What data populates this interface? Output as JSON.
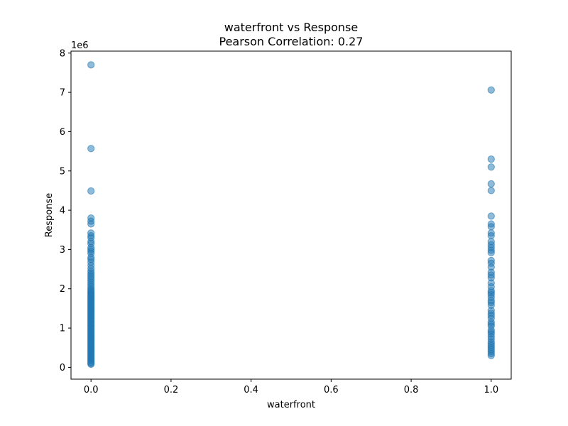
{
  "chart_data": {
    "type": "scatter",
    "title": "waterfront vs Response",
    "subtitle": "Pearson Correlation: 0.27",
    "xlabel": "waterfront",
    "ylabel": "Response",
    "y_multiplier_label": "1e6",
    "xlim": [
      -0.05,
      1.05
    ],
    "ylim": [
      -0.3,
      8.05
    ],
    "x_ticks": [
      0.0,
      0.2,
      0.4,
      0.6,
      0.8,
      1.0
    ],
    "x_tick_labels": [
      "0.0",
      "0.2",
      "0.4",
      "0.6",
      "0.8",
      "1.0"
    ],
    "y_ticks": [
      0,
      1,
      2,
      3,
      4,
      5,
      6,
      7,
      8
    ],
    "y_tick_labels": [
      "0",
      "1",
      "2",
      "3",
      "4",
      "5",
      "6",
      "7",
      "8"
    ],
    "grid": false,
    "point_color": "#1f77b4",
    "point_opacity": 0.5,
    "series": [
      {
        "x": 0,
        "y": [
          7.7,
          5.57,
          4.49,
          3.8,
          3.72,
          3.65,
          3.42,
          3.35,
          3.3,
          3.2,
          3.15,
          3.05,
          3.0,
          2.95,
          2.9,
          2.8,
          2.75,
          2.68,
          2.6,
          2.52,
          2.45,
          2.4,
          2.35,
          2.3,
          2.25,
          2.2,
          2.15,
          2.1,
          2.05,
          2.0,
          1.97,
          1.93,
          1.9,
          1.87,
          1.84,
          1.81,
          1.78,
          1.75,
          1.72,
          1.69,
          1.66,
          1.63,
          1.6,
          1.57,
          1.54,
          1.51,
          1.48,
          1.45,
          1.42,
          1.39,
          1.36,
          1.33,
          1.3,
          1.27,
          1.24,
          1.21,
          1.18,
          1.15,
          1.12,
          1.09,
          1.06,
          1.03,
          1.0,
          0.97,
          0.94,
          0.91,
          0.88,
          0.85,
          0.82,
          0.79,
          0.76,
          0.73,
          0.7,
          0.67,
          0.64,
          0.61,
          0.58,
          0.55,
          0.52,
          0.49,
          0.46,
          0.43,
          0.4,
          0.37,
          0.34,
          0.31,
          0.28,
          0.25,
          0.22,
          0.19,
          0.16,
          0.13,
          0.1,
          0.08
        ]
      },
      {
        "x": 1,
        "y": [
          7.06,
          5.3,
          5.1,
          4.67,
          4.5,
          3.85,
          3.65,
          3.58,
          3.42,
          3.35,
          3.2,
          3.12,
          3.05,
          2.98,
          2.92,
          2.72,
          2.65,
          2.55,
          2.42,
          2.35,
          2.28,
          2.15,
          2.05,
          1.95,
          1.9,
          1.85,
          1.78,
          1.7,
          1.65,
          1.58,
          1.45,
          1.38,
          1.32,
          1.25,
          1.15,
          1.1,
          1.05,
          0.95,
          0.9,
          0.85,
          0.78,
          0.72,
          0.65,
          0.6,
          0.55,
          0.5,
          0.45,
          0.4,
          0.35,
          0.3
        ]
      }
    ]
  }
}
